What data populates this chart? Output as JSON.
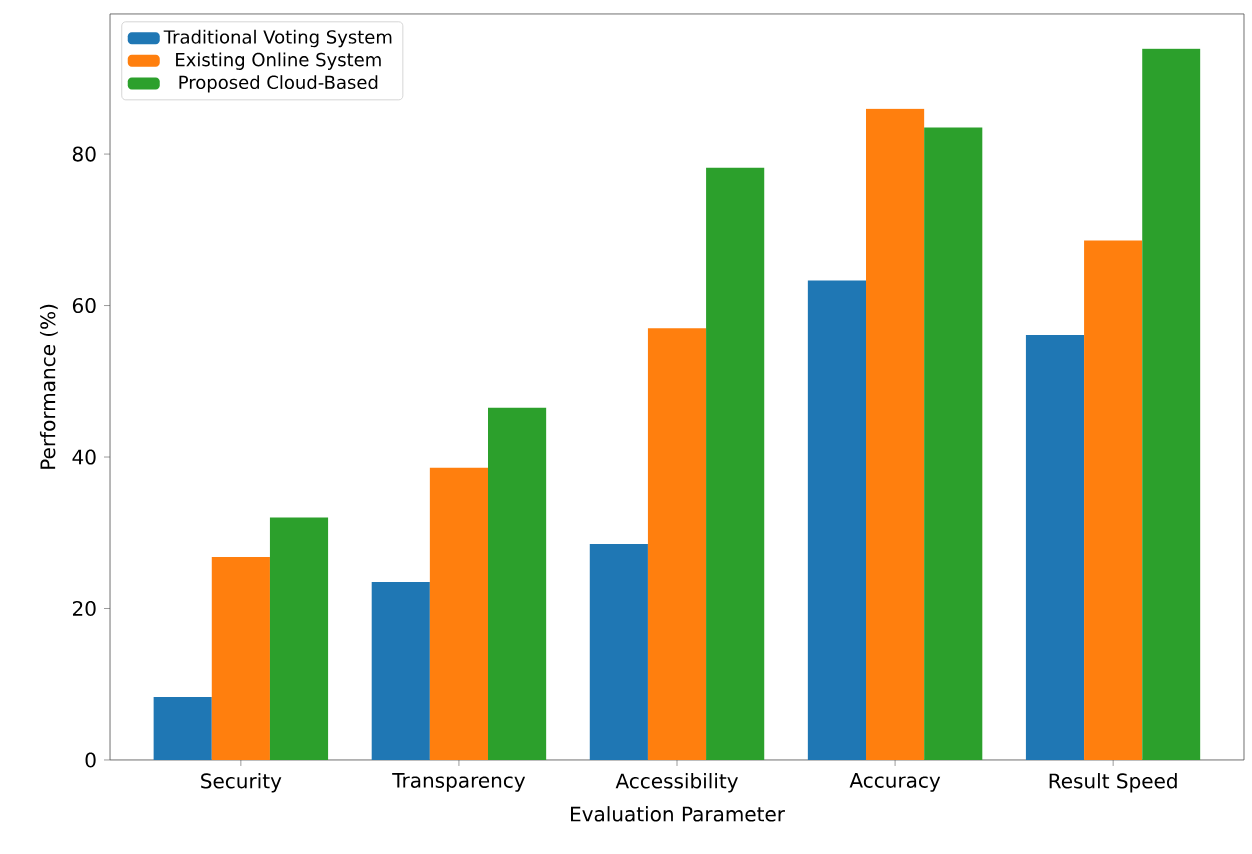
{
  "chart_data": {
    "type": "bar",
    "xlabel": "Evaluation Parameter",
    "ylabel": "Performance (%)",
    "categories": [
      "Security",
      "Transparency",
      "Accessibility",
      "Accuracy",
      "Result Speed"
    ],
    "series": [
      {
        "name": "Traditional Voting System",
        "color": "#1f77b4",
        "values": [
          8.3,
          23.5,
          28.5,
          63.3,
          56.1
        ]
      },
      {
        "name": "Existing Online System",
        "color": "#ff7f0e",
        "values": [
          26.8,
          38.6,
          57.0,
          86.0,
          68.6
        ]
      },
      {
        "name": "Proposed Cloud-Based",
        "color": "#2ca02c",
        "values": [
          32.0,
          46.5,
          78.2,
          83.5,
          93.9
        ]
      }
    ],
    "ylim": [
      0,
      98.5
    ],
    "yticks": [
      0,
      20,
      40,
      60,
      80
    ],
    "legend": "top left",
    "grid": false
  }
}
